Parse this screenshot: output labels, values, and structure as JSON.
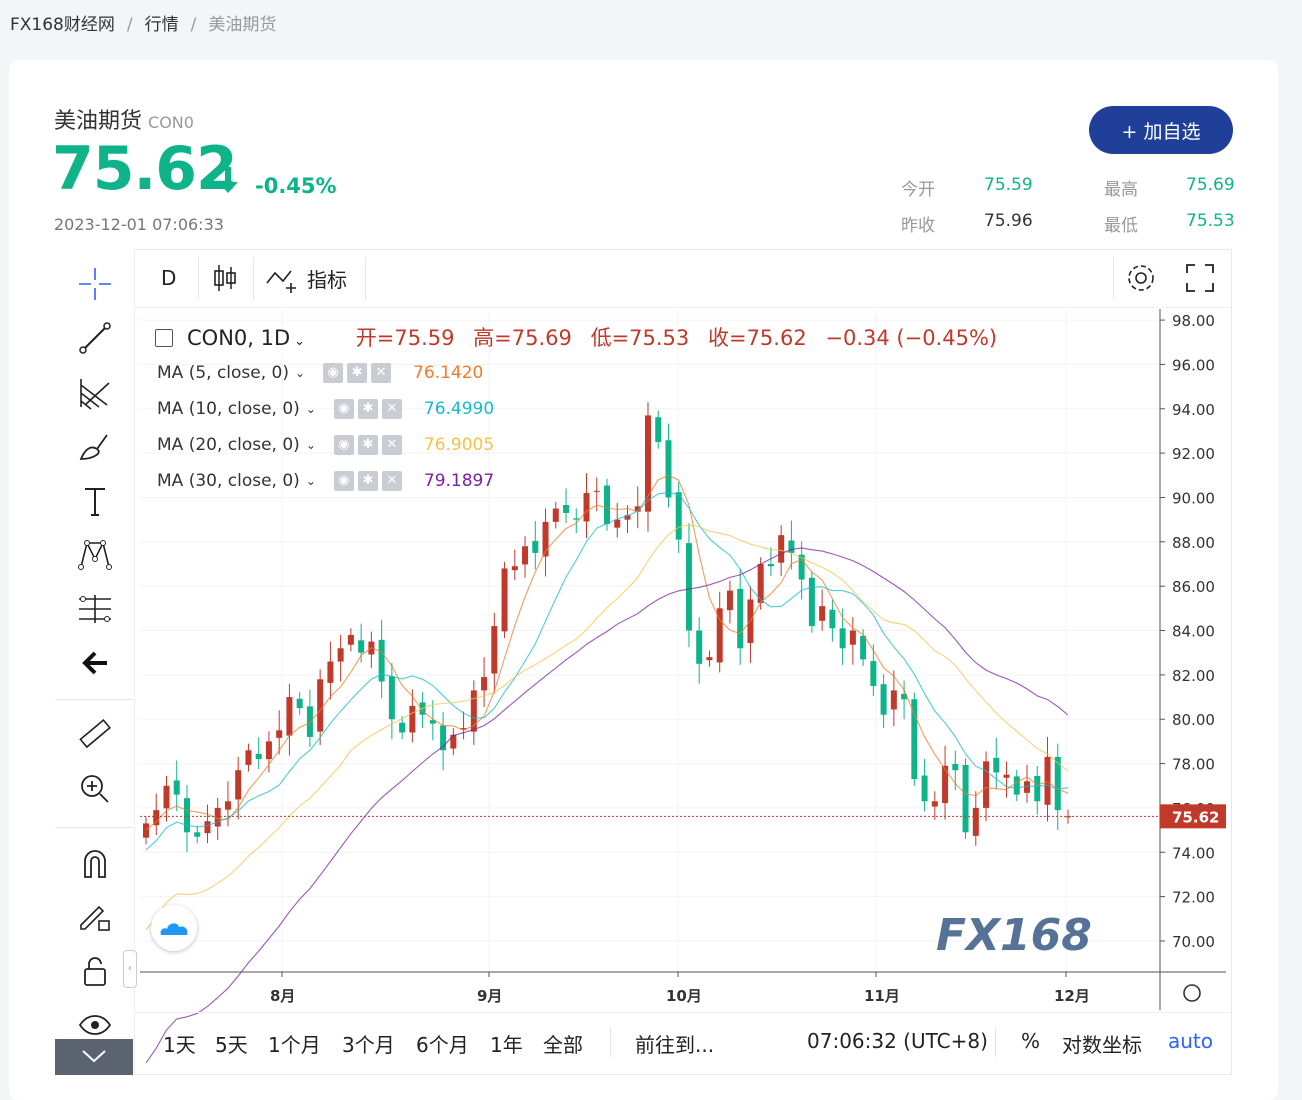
{
  "breadcrumb": {
    "site": "FX168财经网",
    "section": "行情",
    "current": "美油期货"
  },
  "quote": {
    "name": "美油期货",
    "code": "CON0",
    "price": "75.62",
    "change_pct": "-0.45%",
    "timestamp": "2023-12-01 07:06:33",
    "add_label": "+ 加自选",
    "open_label": "今开",
    "open": "75.59",
    "high_label": "最高",
    "high": "75.69",
    "prev_label": "昨收",
    "prev": "75.96",
    "low_label": "最低",
    "low": "75.53"
  },
  "colors": {
    "up": "#c0392b",
    "down": "#0fb38a",
    "brand": "#1f3f99"
  },
  "toolbar": {
    "interval": "D",
    "indicators_label": "指标"
  },
  "legend": {
    "symbol": "CON0, 1D",
    "open": "开=75.59",
    "high": "高=75.69",
    "low": "低=75.53",
    "close": "收=75.62",
    "change": "−0.34 (−0.45%)"
  },
  "ma": [
    {
      "label": "MA (5, close, 0)",
      "value": "76.1420",
      "color": "#f07b2a"
    },
    {
      "label": "MA (10, close, 0)",
      "value": "76.4990",
      "color": "#16b9cf"
    },
    {
      "label": "MA (20, close, 0)",
      "value": "76.9005",
      "color": "#f5c14a"
    },
    {
      "label": "MA (30, close, 0)",
      "value": "79.1897",
      "color": "#7b1fa2"
    }
  ],
  "bottom": {
    "ranges": [
      "1天",
      "5天",
      "1个月",
      "3个月",
      "6个月",
      "1年",
      "全部"
    ],
    "goto": "前往到...",
    "clock": "07:06:32 (UTC+8)",
    "percent": "%",
    "log": "对数坐标",
    "auto": "auto"
  },
  "chart_data": {
    "type": "candlestick",
    "ylim": [
      68.6,
      98.5
    ],
    "y_ticks": [
      "98.00",
      "96.00",
      "94.00",
      "92.00",
      "90.00",
      "88.00",
      "86.00",
      "84.00",
      "82.00",
      "80.00",
      "78.00",
      "76.00",
      "74.00",
      "72.00",
      "70.00"
    ],
    "x_labels": [
      "8月",
      "9月",
      "10月",
      "11月",
      "12月"
    ],
    "last_price_label": "75.62",
    "watermark": "FX168",
    "closes": [
      75.3,
      75.9,
      77.0,
      76.6,
      74.9,
      74.7,
      75.4,
      76.0,
      76.3,
      77.7,
      78.6,
      78.2,
      79.0,
      79.5,
      81.0,
      80.5,
      79.2,
      81.8,
      82.6,
      83.2,
      83.8,
      83.0,
      83.5,
      81.7,
      80.0,
      79.4,
      80.6,
      80.2,
      79.8,
      78.6,
      79.3,
      79.6,
      81.3,
      81.9,
      84.2,
      86.8,
      86.9,
      87.8,
      87.5,
      88.9,
      89.5,
      89.3,
      89.0,
      90.2,
      90.3,
      88.8,
      89.0,
      89.2,
      89.6,
      93.7,
      92.5,
      90.0,
      88.1,
      84.0,
      82.5,
      82.8,
      85.0,
      85.8,
      83.2,
      85.4,
      87.0,
      86.9,
      88.3,
      87.5,
      86.3,
      84.2,
      85.1,
      84.1,
      83.2,
      84.0,
      82.7,
      81.5,
      80.2,
      81.3,
      80.9,
      77.3,
      76.3,
      76.3,
      77.9,
      77.7,
      74.9,
      76.0,
      78.1,
      77.6,
      77.5,
      76.6,
      77.2,
      76.3,
      78.3,
      75.9,
      75.62
    ]
  }
}
